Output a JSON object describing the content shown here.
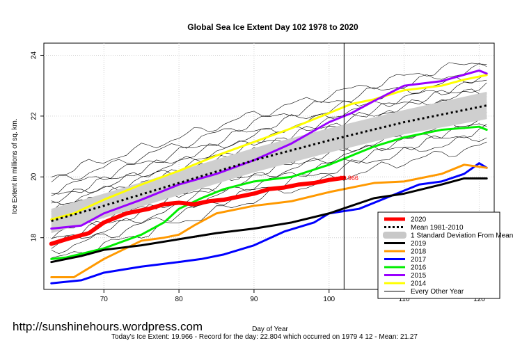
{
  "chart_data": {
    "type": "line",
    "title": "Global Sea Ice Extent Day 102 1978 to 2020",
    "xlabel": "Day of Year",
    "ylabel": "Ice Extent in millions of sq. km.",
    "xlim": [
      62,
      122
    ],
    "ylim": [
      16.3,
      24.4
    ],
    "xticks": [
      70,
      80,
      90,
      100,
      110,
      120
    ],
    "yticks": [
      18,
      20,
      22,
      24
    ],
    "grid": true,
    "legend_position": "bottom-right",
    "current_day": 102,
    "current_value": 19.966,
    "current_value_label": "19.966",
    "footer_url": "http://sunshinehours.wordpress.com",
    "caption": "Today's Ice Extent: 19.966  - Record for the day: 22.804 which occurred on 1979 4 12  - Mean: 21.27",
    "legend": [
      {
        "label": "2020",
        "color": "#ff0000",
        "style": "thick"
      },
      {
        "label": "Mean 1981-2010",
        "color": "#000000",
        "style": "dotted"
      },
      {
        "label": "1 Standard Deviation From Mean",
        "color": "#c8c8c8",
        "style": "band"
      },
      {
        "label": "2019",
        "color": "#000000",
        "style": "solid"
      },
      {
        "label": "2018",
        "color": "#ff9900",
        "style": "solid"
      },
      {
        "label": "2017",
        "color": "#0000ff",
        "style": "solid"
      },
      {
        "label": "2016",
        "color": "#00ee00",
        "style": "solid"
      },
      {
        "label": "2015",
        "color": "#9900ff",
        "style": "solid"
      },
      {
        "label": "2014",
        "color": "#ffff00",
        "style": "solid"
      },
      {
        "label": "Every Other Year",
        "color": "#000000",
        "style": "thin"
      }
    ],
    "mean": {
      "name": "Mean 1981-2010",
      "x": [
        63,
        70,
        80,
        90,
        100,
        110,
        121
      ],
      "values": [
        18.55,
        19.05,
        19.8,
        20.55,
        21.2,
        21.8,
        22.35
      ]
    },
    "sd_band": {
      "name": "1 Standard Deviation From Mean",
      "x": [
        63,
        70,
        80,
        90,
        100,
        110,
        121
      ],
      "upper": [
        18.95,
        19.45,
        20.2,
        20.95,
        21.6,
        22.2,
        22.8
      ],
      "lower": [
        18.15,
        18.65,
        19.4,
        20.15,
        20.8,
        21.4,
        21.9
      ]
    },
    "series": [
      {
        "name": "2020",
        "color": "#ff0000",
        "x": [
          63,
          65,
          68,
          70,
          73,
          76,
          78,
          80,
          82,
          84,
          86,
          88,
          90,
          92,
          94,
          96,
          98,
          100,
          102
        ],
        "values": [
          17.8,
          17.95,
          18.15,
          18.5,
          18.8,
          18.95,
          19.1,
          19.15,
          19.1,
          19.2,
          19.25,
          19.35,
          19.45,
          19.6,
          19.65,
          19.75,
          19.8,
          19.9,
          19.97
        ]
      },
      {
        "name": "2019",
        "color": "#000000",
        "x": [
          63,
          67,
          70,
          75,
          80,
          85,
          90,
          95,
          100,
          103,
          106,
          110,
          115,
          118,
          121
        ],
        "values": [
          17.2,
          17.4,
          17.6,
          17.75,
          17.95,
          18.15,
          18.3,
          18.5,
          18.8,
          19.05,
          19.3,
          19.45,
          19.75,
          19.95,
          19.95
        ]
      },
      {
        "name": "2018",
        "color": "#ff9900",
        "x": [
          63,
          66,
          70,
          75,
          78,
          80,
          82,
          85,
          90,
          95,
          100,
          103,
          106,
          110,
          115,
          118,
          121
        ],
        "values": [
          16.7,
          16.7,
          17.3,
          17.9,
          18.0,
          18.1,
          18.4,
          18.8,
          19.05,
          19.2,
          19.5,
          19.65,
          19.8,
          19.85,
          20.1,
          20.4,
          20.3
        ]
      },
      {
        "name": "2017",
        "color": "#0000ff",
        "x": [
          63,
          67,
          70,
          75,
          80,
          83,
          86,
          90,
          94,
          98,
          100,
          104,
          108,
          112,
          115,
          118,
          120,
          121
        ],
        "values": [
          16.5,
          16.6,
          16.85,
          17.05,
          17.2,
          17.3,
          17.45,
          17.75,
          18.2,
          18.5,
          18.8,
          18.95,
          19.35,
          19.75,
          19.85,
          20.1,
          20.45,
          20.3
        ]
      },
      {
        "name": "2016",
        "color": "#00ee00",
        "x": [
          63,
          65,
          70,
          75,
          78,
          80,
          83,
          86,
          90,
          95,
          100,
          103,
          106,
          110,
          115,
          120,
          121
        ],
        "values": [
          17.3,
          17.35,
          17.65,
          18.1,
          18.5,
          18.95,
          19.3,
          19.6,
          19.85,
          20.0,
          20.4,
          20.7,
          21.0,
          21.3,
          21.55,
          21.65,
          21.55
        ]
      },
      {
        "name": "2015",
        "color": "#9900ff",
        "x": [
          63,
          67,
          70,
          75,
          80,
          85,
          90,
          95,
          100,
          103,
          106,
          110,
          115,
          120,
          121
        ],
        "values": [
          18.3,
          18.4,
          18.8,
          19.25,
          19.75,
          20.1,
          20.55,
          21.1,
          21.8,
          22.1,
          22.5,
          23.0,
          23.15,
          23.5,
          23.4
        ]
      },
      {
        "name": "2014",
        "color": "#ffff00",
        "x": [
          63,
          66,
          70,
          75,
          80,
          85,
          90,
          95,
          100,
          103,
          106,
          110,
          115,
          118,
          121
        ],
        "values": [
          18.6,
          18.8,
          19.25,
          19.75,
          20.2,
          20.7,
          21.15,
          21.6,
          22.1,
          22.4,
          22.55,
          22.85,
          23.0,
          23.2,
          23.35
        ]
      }
    ]
  }
}
